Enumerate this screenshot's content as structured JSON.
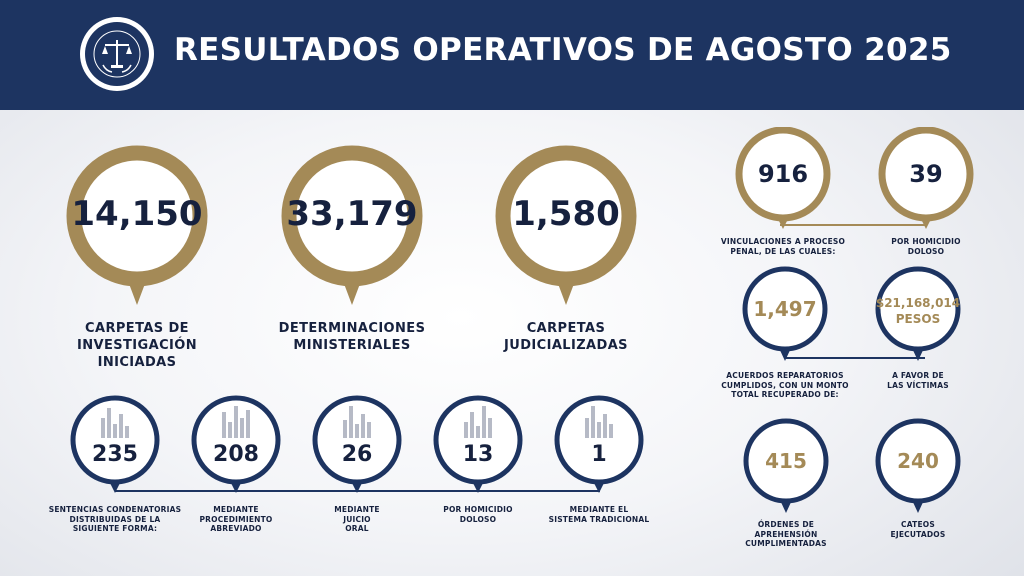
{
  "header": {
    "title": "RESULTADOS OPERATIVOS DE AGOSTO 2025",
    "background": "#1d3461"
  },
  "colors": {
    "gold": "#a48a57",
    "navy": "#1d3461",
    "text": "#16213e",
    "bars": "#b6bac6"
  },
  "big_stats": [
    {
      "value": "14,150",
      "label": "CARPETAS DE\nINVESTIGACIÓN\nINICIADAS"
    },
    {
      "value": "33,179",
      "label": "DETERMINACIONES\nMINISTERIALES"
    },
    {
      "value": "1,580",
      "label": "CARPETAS\nJUDICIALIZADAS"
    }
  ],
  "sentencias": [
    {
      "value": "235",
      "label": "SENTENCIAS CONDENATORIAS\nDISTRIBUIDAS DE LA\nSIGUIENTE FORMA:",
      "icon": "bar-chart-icon"
    },
    {
      "value": "208",
      "label": "MEDIANTE\nPROCEDIMIENTO\nABREVIADO",
      "icon": "bar-chart-icon"
    },
    {
      "value": "26",
      "label": "MEDIANTE\nJUICIO\nORAL",
      "icon": "bar-chart-icon"
    },
    {
      "value": "13",
      "label": "POR HOMICIDIO\nDOLOSO",
      "icon": "bar-chart-icon"
    },
    {
      "value": "1",
      "label": "MEDIANTE EL\nSISTEMA TRADICIONAL",
      "icon": "bar-chart-icon"
    }
  ],
  "right": {
    "vinculaciones": {
      "value": "916",
      "label": "VINCULACIONES A PROCESO\nPENAL, DE LAS CUALES:"
    },
    "homicidio": {
      "value": "39",
      "label": "POR HOMICIDIO\nDOLOSO"
    },
    "acuerdos": {
      "value": "1,497",
      "label": "ACUERDOS REPARATORIOS\nCUMPLIDOS, CON UN MONTO\nTOTAL RECUPERADO DE:"
    },
    "monto": {
      "value": "$21,168,014",
      "unit": "PESOS",
      "label": "A FAVOR DE\nLAS VÍCTIMAS"
    },
    "ordenes": {
      "value": "415",
      "label": "ÓRDENES DE\nAPREHENSIÓN\nCUMPLIMENTADAS"
    },
    "cateos": {
      "value": "240",
      "label": "CATEOS\nEJECUTADOS"
    }
  }
}
